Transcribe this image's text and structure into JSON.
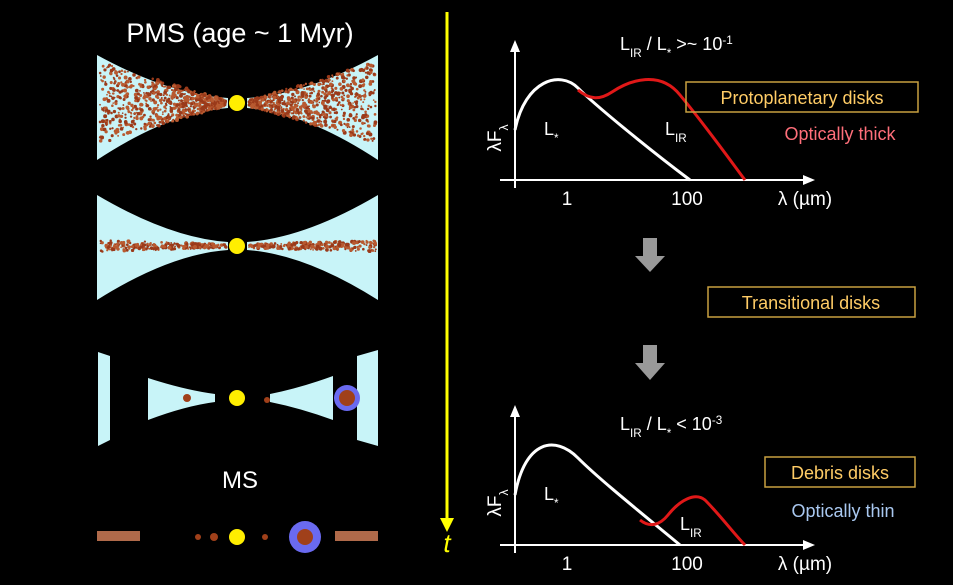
{
  "left": {
    "pms_label": "PMS (age ~ 1 Myr)",
    "ms_label": "MS",
    "time_label": "t"
  },
  "top_panel": {
    "ratio": [
      "L",
      "IR",
      " / L",
      "*",
      " >~ 10",
      "-1"
    ],
    "y_label": [
      "λF",
      "λ"
    ],
    "star_label": [
      "L",
      "*"
    ],
    "ir_label": [
      "L",
      "IR"
    ],
    "x_ticks": [
      "1",
      "100"
    ],
    "x_label": "λ (µm)",
    "class": "Protoplanetary disks",
    "depth": "Optically thick"
  },
  "middle": {
    "class": "Transitional disks"
  },
  "bottom_panel": {
    "ratio": [
      "L",
      "IR",
      " / L",
      "*",
      " < 10",
      "-3"
    ],
    "y_label": [
      "λF",
      "λ"
    ],
    "star_label": [
      "L",
      "*"
    ],
    "ir_label": [
      "L",
      "IR"
    ],
    "x_ticks": [
      "1",
      "100"
    ],
    "x_label": "λ (µm)",
    "class": "Debris disks",
    "depth": "Optically thin"
  }
}
